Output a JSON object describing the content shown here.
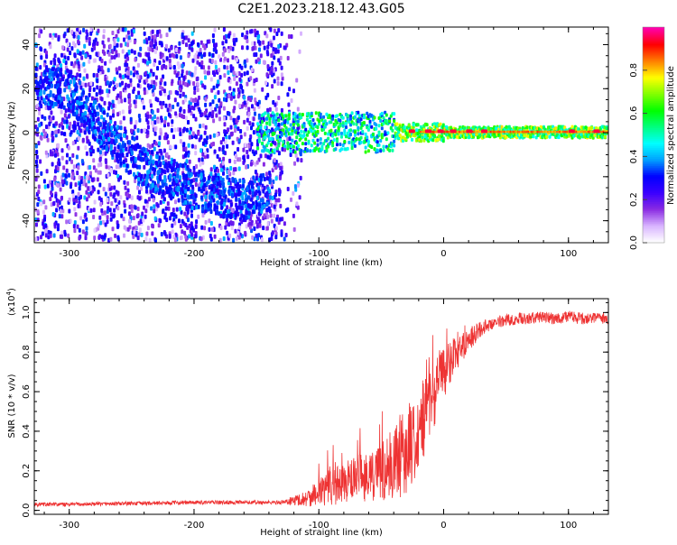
{
  "chart_data": [
    {
      "type": "heatmap",
      "title": "C2E1.2023.218.12.43.G05",
      "xlabel": "Height of straight line (km)",
      "ylabel": "Frequency (Hz)",
      "xlim": [
        -328,
        132
      ],
      "ylim": [
        -50,
        48
      ],
      "xticks": [
        -300,
        -200,
        -100,
        0,
        100
      ],
      "yticks": [
        -40,
        -20,
        0,
        20,
        40
      ],
      "colorbar": {
        "label": "Normalized spectral amplitude",
        "range": [
          0,
          1
        ],
        "ticks": [
          0.0,
          0.2,
          0.4,
          0.6,
          0.8
        ],
        "colormap": [
          "#ffffff",
          "#d8b4ff",
          "#8a2be2",
          "#3a00ff",
          "#0000ff",
          "#00a0ff",
          "#00ffff",
          "#00ff80",
          "#00ff00",
          "#80ff00",
          "#ffff00",
          "#ff8000",
          "#ff0000",
          "#ff00aa"
        ]
      },
      "regions": [
        {
          "name": "scattered",
          "x_range": [
            -328,
            -125
          ],
          "freq_spread": 48,
          "level": 0.25
        },
        {
          "name": "diagonal-feature",
          "points": [
            [
              -328,
              24
            ],
            [
              -300,
              20
            ],
            [
              -270,
              0
            ],
            [
              -240,
              -15
            ],
            [
              -200,
              -25
            ],
            [
              -160,
              -30
            ],
            [
              -140,
              -25
            ]
          ],
          "level": 0.35
        },
        {
          "name": "carrier-band",
          "x_range": [
            -150,
            132
          ],
          "center_freq": 0,
          "level": 0.7
        },
        {
          "name": "peak-spots",
          "x": [
            -28,
            -15,
            -5,
            5,
            18,
            30,
            100,
            120
          ],
          "level": 0.95
        }
      ]
    },
    {
      "type": "line",
      "title": "",
      "xlabel": "Height of straight line (km)",
      "ylabel": "SNR (10 * v/v)",
      "yscale_label": "(x10",
      "yscale_exp": "4",
      "yscale_close": ")",
      "xlim": [
        -328,
        132
      ],
      "ylim": [
        -0.02,
        1.07
      ],
      "xticks": [
        -300,
        -200,
        -100,
        0,
        100
      ],
      "yticks": [
        0.0,
        0.2,
        0.4,
        0.6,
        0.8,
        1.0
      ],
      "color": "#ee3333",
      "series": [
        {
          "x": [
            -328,
            -300,
            -250,
            -200,
            -150,
            -130,
            -110,
            -100,
            -90,
            -80,
            -70,
            -60,
            -50,
            -40,
            -30,
            -20,
            -10,
            0,
            10,
            20,
            30,
            40,
            50,
            60,
            70,
            80,
            90,
            100,
            110,
            120,
            132
          ],
          "values": [
            0.03,
            0.03,
            0.035,
            0.04,
            0.04,
            0.04,
            0.06,
            0.1,
            0.12,
            0.14,
            0.16,
            0.18,
            0.2,
            0.23,
            0.3,
            0.42,
            0.55,
            0.7,
            0.8,
            0.86,
            0.92,
            0.95,
            0.96,
            0.97,
            0.97,
            0.98,
            0.97,
            0.98,
            0.97,
            0.97,
            0.97
          ],
          "noise": [
            0.01,
            0.01,
            0.01,
            0.01,
            0.01,
            0.01,
            0.04,
            0.08,
            0.1,
            0.1,
            0.12,
            0.14,
            0.16,
            0.18,
            0.22,
            0.22,
            0.18,
            0.14,
            0.1,
            0.06,
            0.04,
            0.03,
            0.03,
            0.03,
            0.03,
            0.03,
            0.03,
            0.03,
            0.03,
            0.03,
            0.03
          ]
        }
      ]
    }
  ]
}
